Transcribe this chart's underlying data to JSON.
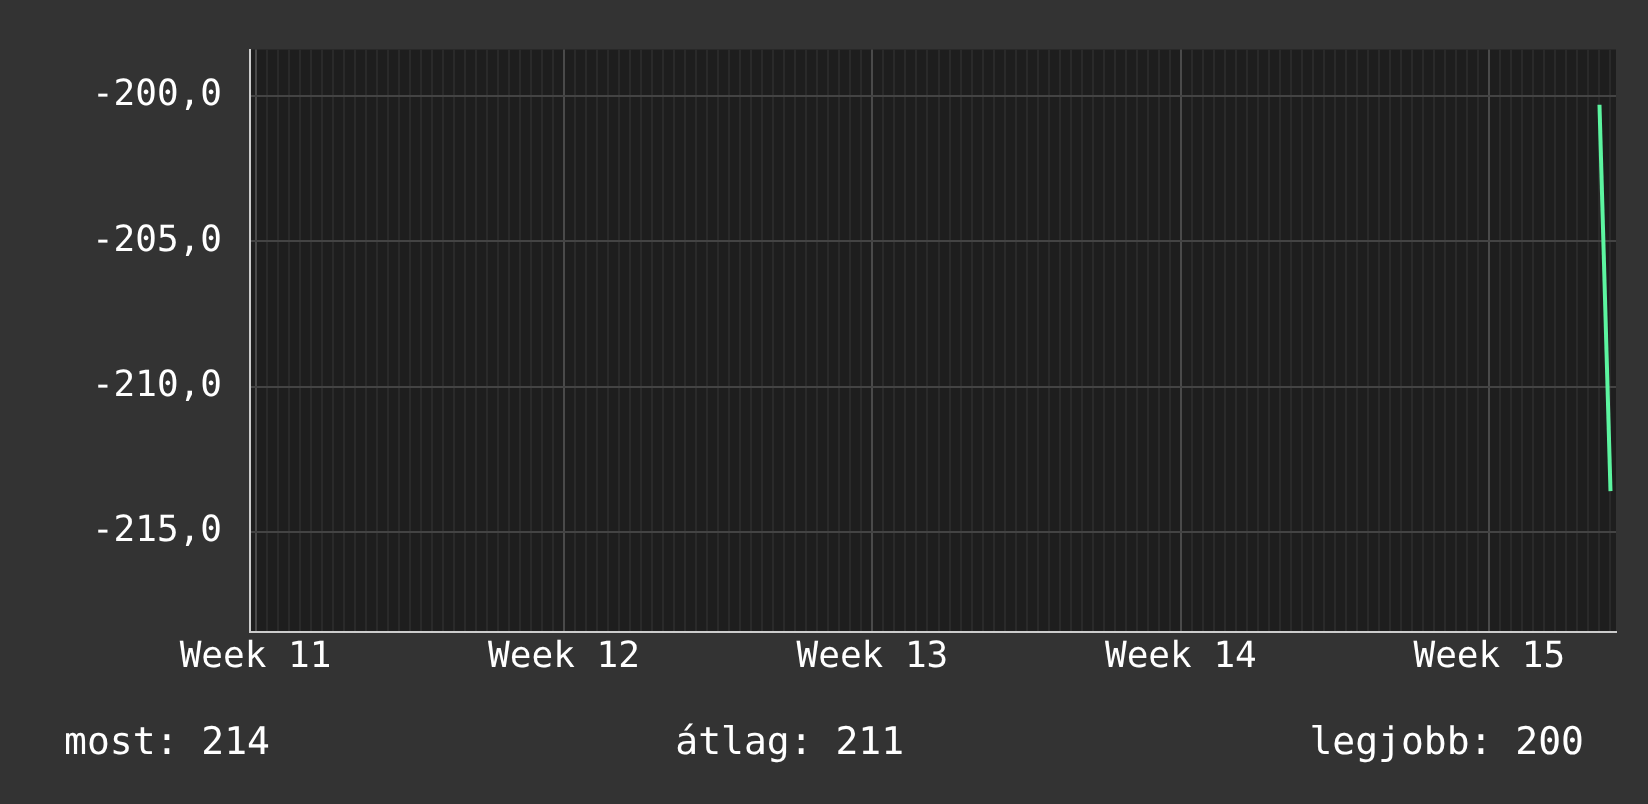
{
  "chart_data": {
    "type": "line",
    "categories": [
      "Week 11",
      null,
      null,
      null,
      null,
      null,
      null,
      null,
      null,
      null,
      null,
      null,
      null,
      null,
      null,
      null,
      null,
      null,
      null,
      null,
      null,
      null,
      null,
      null,
      null,
      null,
      null,
      null,
      "Week 12",
      null,
      null,
      null,
      null,
      null,
      null,
      null,
      null,
      null,
      null,
      null,
      null,
      null,
      null,
      null,
      null,
      null,
      null,
      null,
      null,
      null,
      null,
      null,
      null,
      null,
      null,
      null,
      "Week 13",
      null,
      null,
      null,
      null,
      null,
      null,
      null,
      null,
      null,
      null,
      null,
      null,
      null,
      null,
      null,
      null,
      null,
      null,
      null,
      null,
      null,
      null,
      null,
      null,
      null,
      null,
      null,
      "Week 14",
      null,
      null,
      null,
      null,
      null,
      null,
      null,
      null,
      null,
      null,
      null,
      null,
      null,
      null,
      null,
      null,
      null,
      null,
      null,
      null,
      null,
      null,
      null,
      null,
      null,
      null,
      null,
      "Week 15",
      null,
      null,
      null,
      null,
      null,
      null,
      null,
      null,
      null,
      null,
      null
    ],
    "series": [
      {
        "color": "#5cf5a0",
        "values": [
          null,
          null,
          null,
          null,
          null,
          null,
          null,
          null,
          null,
          null,
          null,
          null,
          null,
          null,
          null,
          null,
          null,
          null,
          null,
          null,
          null,
          null,
          null,
          null,
          null,
          null,
          null,
          null,
          null,
          null,
          null,
          null,
          null,
          null,
          null,
          null,
          null,
          null,
          null,
          null,
          null,
          null,
          null,
          null,
          null,
          null,
          null,
          null,
          null,
          null,
          null,
          null,
          null,
          null,
          null,
          null,
          null,
          null,
          null,
          null,
          null,
          null,
          null,
          null,
          null,
          null,
          null,
          null,
          null,
          null,
          null,
          null,
          null,
          null,
          null,
          null,
          null,
          null,
          null,
          null,
          null,
          null,
          null,
          null,
          null,
          null,
          null,
          null,
          null,
          null,
          null,
          null,
          null,
          null,
          null,
          null,
          null,
          null,
          null,
          null,
          null,
          null,
          null,
          null,
          null,
          null,
          null,
          null,
          null,
          null,
          null,
          null,
          null,
          null,
          null,
          null,
          null,
          null,
          null,
          null,
          null,
          null,
          -200.3,
          -213.6
        ]
      }
    ],
    "ylim": [
      -218.45,
      -198.4
    ],
    "yticks": [
      {
        "value": -200,
        "label": "-200,0"
      },
      {
        "value": -205,
        "label": "-205,0"
      },
      {
        "value": -210,
        "label": "-210,0"
      },
      {
        "value": -215,
        "label": "-215,0"
      }
    ],
    "grid": true,
    "marker": "none",
    "line_style": "solid",
    "legend": false,
    "annotations": [
      "most: 214",
      "átlag: 211",
      "legjobb: 200"
    ]
  }
}
